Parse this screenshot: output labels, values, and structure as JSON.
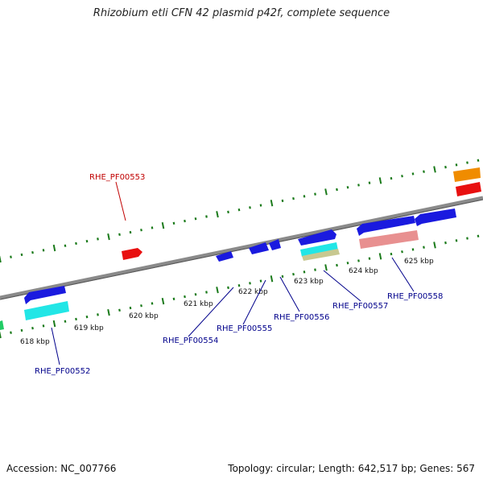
{
  "title": "Rhizobium etli CFN 42 plasmid p42f, complete sequence",
  "footer": {
    "accession": "Accession: NC_007766",
    "summary": "Topology: circular; Length: 642,517 bp; Genes: 567"
  },
  "colors": {
    "forward_gene": "#1a1adf",
    "reverse_gene": "#1a1adf",
    "rna": "#e81010",
    "cds_cyan": "#22e6e6",
    "tan": "#c8c890",
    "pink": "#e89090",
    "orange": "#f08c00",
    "tick": "#1a7a1a",
    "backbone": "#8a8a8a",
    "label_blue": "#00008b",
    "label_red": "#c00000"
  },
  "scale_labels": [
    "618 kbp",
    "619 kbp",
    "620 kbp",
    "621 kbp",
    "622 kbp",
    "623 kbp",
    "624 kbp",
    "625 kbp"
  ],
  "gene_labels": [
    {
      "id": "RHE_PF00552",
      "color": "blue"
    },
    {
      "id": "RHE_PF00553",
      "color": "red"
    },
    {
      "id": "RHE_PF00554",
      "color": "blue"
    },
    {
      "id": "RHE_PF00555",
      "color": "blue"
    },
    {
      "id": "RHE_PF00556",
      "color": "blue"
    },
    {
      "id": "RHE_PF00557",
      "color": "blue"
    },
    {
      "id": "RHE_PF00558",
      "color": "blue"
    }
  ]
}
